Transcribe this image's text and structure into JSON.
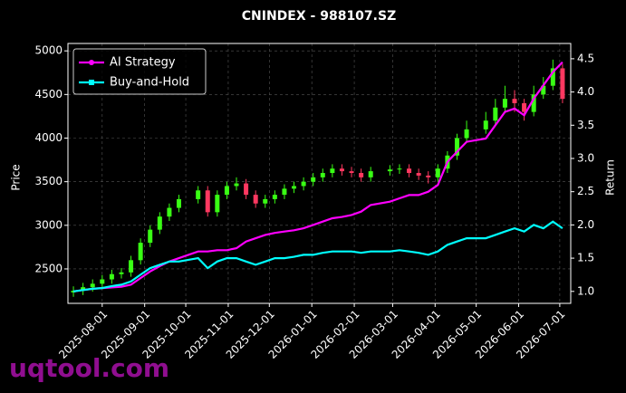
{
  "chart_data": {
    "type": "candlestick",
    "title": "CNINDEX - 988107.SZ",
    "ylabel": "Price",
    "y2label": "Return",
    "watermark": "uqtool.com",
    "x": [
      "2025-07-11",
      "2025-07-18",
      "2025-07-25",
      "2025-08-01",
      "2025-08-08",
      "2025-08-15",
      "2025-08-22",
      "2025-08-29",
      "2025-09-05",
      "2025-09-12",
      "2025-09-19",
      "2025-09-26",
      "2025-10-10",
      "2025-10-17",
      "2025-10-24",
      "2025-10-31",
      "2025-11-07",
      "2025-11-14",
      "2025-11-21",
      "2025-11-28",
      "2025-12-05",
      "2025-12-12",
      "2025-12-19",
      "2025-12-26",
      "2026-01-02",
      "2026-01-09",
      "2026-01-16",
      "2026-01-23",
      "2026-01-30",
      "2026-02-06",
      "2026-02-13",
      "2026-02-27",
      "2026-03-06",
      "2026-03-13",
      "2026-03-20",
      "2026-03-27",
      "2026-04-03",
      "2026-04-10",
      "2026-04-17",
      "2026-04-24",
      "2026-05-08",
      "2026-05-15",
      "2026-05-22",
      "2026-05-29",
      "2026-06-05",
      "2026-06-12",
      "2026-06-19",
      "2026-06-26",
      "2026-07-03"
    ],
    "open": [
      2230,
      2250,
      2290,
      2330,
      2380,
      2440,
      2460,
      2600,
      2800,
      2950,
      3100,
      3200,
      3300,
      3400,
      3150,
      3350,
      3450,
      3480,
      3350,
      3250,
      3300,
      3350,
      3420,
      3450,
      3500,
      3550,
      3600,
      3650,
      3620,
      3600,
      3550,
      3620,
      3640,
      3650,
      3600,
      3570,
      3550,
      3650,
      3800,
      4000,
      4100,
      4200,
      4350,
      4450,
      4400,
      4300,
      4500,
      4600,
      4800
    ],
    "high": [
      2300,
      2340,
      2380,
      2430,
      2490,
      2510,
      2650,
      2850,
      3000,
      3150,
      3250,
      3350,
      3450,
      3450,
      3400,
      3500,
      3550,
      3530,
      3400,
      3350,
      3400,
      3470,
      3500,
      3550,
      3600,
      3650,
      3700,
      3700,
      3670,
      3650,
      3670,
      3690,
      3700,
      3700,
      3650,
      3620,
      3700,
      3850,
      4050,
      4200,
      4300,
      4450,
      4600,
      4550,
      4450,
      4600,
      4700,
      4900,
      4850
    ],
    "low": [
      2180,
      2200,
      2240,
      2280,
      2330,
      2390,
      2410,
      2550,
      2750,
      2900,
      3050,
      3150,
      3250,
      3100,
      3100,
      3300,
      3400,
      3300,
      3200,
      3200,
      3250,
      3300,
      3370,
      3400,
      3450,
      3500,
      3550,
      3570,
      3550,
      3500,
      3500,
      3570,
      3590,
      3550,
      3520,
      3480,
      3500,
      3600,
      3750,
      3950,
      4050,
      4150,
      4300,
      4300,
      4200,
      4250,
      4450,
      4550,
      4400
    ],
    "close": [
      2250,
      2290,
      2330,
      2380,
      2440,
      2460,
      2600,
      2800,
      2950,
      3100,
      3200,
      3300,
      3400,
      3150,
      3350,
      3450,
      3480,
      3350,
      3250,
      3300,
      3350,
      3420,
      3450,
      3500,
      3550,
      3600,
      3650,
      3620,
      3600,
      3550,
      3620,
      3640,
      3650,
      3600,
      3570,
      3550,
      3650,
      3800,
      4000,
      4100,
      4200,
      4350,
      4450,
      4400,
      4300,
      4500,
      4600,
      4800,
      4450
    ],
    "up_color": "#39ff14",
    "down_color": "#ff3860",
    "series": [
      {
        "name": "AI Strategy",
        "color": "#ff00ff",
        "axis": "y2",
        "marker": "circle",
        "values": [
          1.0,
          1.02,
          1.04,
          1.05,
          1.06,
          1.07,
          1.1,
          1.2,
          1.3,
          1.38,
          1.45,
          1.5,
          1.6,
          1.6,
          1.62,
          1.62,
          1.65,
          1.75,
          1.8,
          1.85,
          1.88,
          1.9,
          1.92,
          1.95,
          2.0,
          2.05,
          2.1,
          2.12,
          2.15,
          2.2,
          2.3,
          2.35,
          2.4,
          2.45,
          2.45,
          2.5,
          2.6,
          2.95,
          3.1,
          3.25,
          3.3,
          3.5,
          3.7,
          3.75,
          3.65,
          3.9,
          4.1,
          4.3,
          4.45
        ]
      },
      {
        "name": "Buy-and-Hold",
        "color": "#00ffff",
        "axis": "y2",
        "marker": "square",
        "values": [
          1.0,
          1.02,
          1.04,
          1.05,
          1.08,
          1.1,
          1.15,
          1.25,
          1.35,
          1.4,
          1.45,
          1.45,
          1.5,
          1.35,
          1.45,
          1.5,
          1.5,
          1.45,
          1.4,
          1.45,
          1.5,
          1.5,
          1.52,
          1.55,
          1.55,
          1.58,
          1.6,
          1.6,
          1.6,
          1.58,
          1.6,
          1.6,
          1.62,
          1.6,
          1.58,
          1.55,
          1.6,
          1.7,
          1.75,
          1.8,
          1.8,
          1.85,
          1.9,
          1.95,
          1.9,
          2.0,
          1.95,
          2.05,
          1.95
        ]
      }
    ],
    "xlim": [
      "2025-07-07",
      "2026-07-09"
    ],
    "xticks": [
      "2025-08-01",
      "2025-09-01",
      "2025-10-01",
      "2025-11-01",
      "2025-12-01",
      "2026-01-01",
      "2026-02-01",
      "2026-03-01",
      "2026-04-01",
      "2026-05-01",
      "2026-06-01",
      "2026-07-01"
    ],
    "ylim": [
      2105,
      5085
    ],
    "yticks": [
      2500,
      3000,
      3500,
      4000,
      4500,
      5000
    ],
    "y2lim": [
      0.82,
      4.73
    ],
    "y2ticks": [
      {
        "value": 1,
        "label": "1.0"
      },
      1.5,
      {
        "value": 2,
        "label": "2.0"
      },
      2.5,
      {
        "value": 3,
        "label": "3.0"
      },
      3.5,
      {
        "value": 4,
        "label": "4.0"
      },
      4.5
    ],
    "grid": true,
    "legend": "upper left"
  }
}
